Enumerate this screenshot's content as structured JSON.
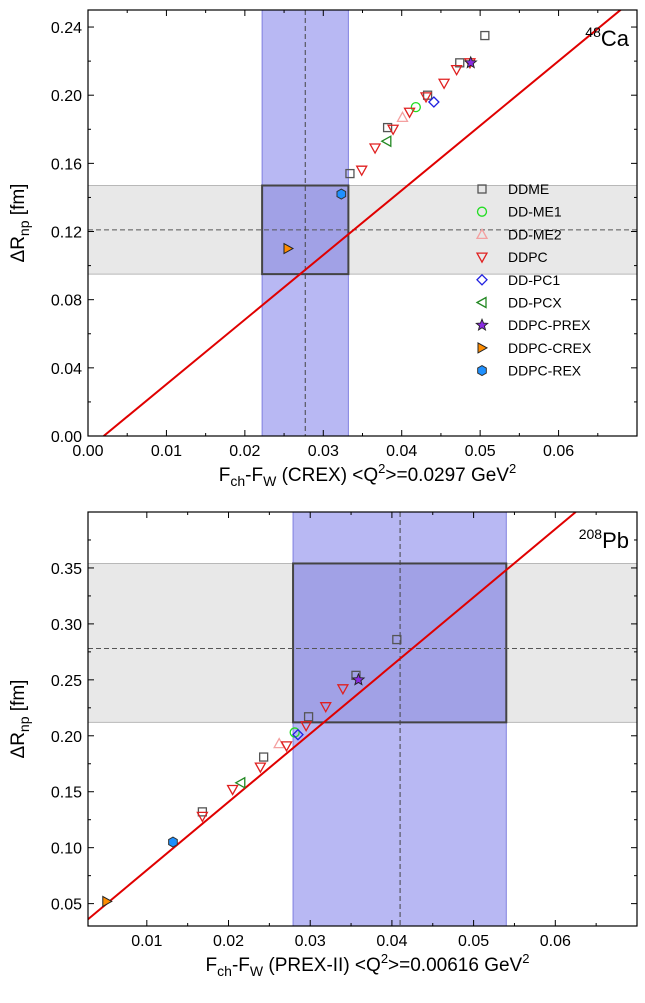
{
  "chart_data": [
    {
      "type": "scatter",
      "nucleus": "Ca",
      "mass_number": "48",
      "xlabel": {
        "base": "F",
        "sub1": "ch",
        "mid": "-F",
        "sub2": "W",
        "rest": " (CREX) <Q",
        "sup": "2",
        "rest2": ">=0.0297 GeV",
        "sup2": "2"
      },
      "ylabel": {
        "base": "ΔR",
        "sub": "np",
        "rest": " [fm]"
      },
      "xlim": [
        0.0,
        0.07
      ],
      "ylim": [
        0.0,
        0.25
      ],
      "xticks": [
        0.0,
        0.01,
        0.02,
        0.03,
        0.04,
        0.05,
        0.06
      ],
      "xtick_labels": [
        "0.00",
        "0.01",
        "0.02",
        "0.03",
        "0.04",
        "0.05",
        "0.06"
      ],
      "yticks": [
        0.0,
        0.04,
        0.08,
        0.12,
        0.16,
        0.2,
        0.24
      ],
      "ytick_labels": [
        "0.00",
        "0.04",
        "0.08",
        "0.12",
        "0.16",
        "0.20",
        "0.24"
      ],
      "exp_x": {
        "center": 0.0277,
        "low": 0.0222,
        "high": 0.0332
      },
      "exp_y": {
        "center": 0.121,
        "low": 0.095,
        "high": 0.147
      },
      "fit_line": {
        "x": [
          0.002,
          0.07
        ],
        "y": [
          0.0,
          0.258
        ]
      },
      "series": [
        {
          "name": "DDME",
          "marker": "square",
          "color": "#555555",
          "points": [
            [
              0.0334,
              0.154
            ],
            [
              0.0382,
              0.181
            ],
            [
              0.0433,
              0.2
            ],
            [
              0.0474,
              0.219
            ],
            [
              0.0506,
              0.235
            ]
          ]
        },
        {
          "name": "DD-ME1",
          "marker": "circle",
          "color": "#22dd22",
          "points": [
            [
              0.0418,
              0.193
            ]
          ]
        },
        {
          "name": "DD-ME2",
          "marker": "triangle-up",
          "color": "#f4a0a0",
          "points": [
            [
              0.0401,
              0.187
            ]
          ]
        },
        {
          "name": "DDPC",
          "marker": "triangle-down",
          "color": "#e02020",
          "points": [
            [
              0.0349,
              0.156
            ],
            [
              0.0366,
              0.169
            ],
            [
              0.0389,
              0.18
            ],
            [
              0.041,
              0.19
            ],
            [
              0.0431,
              0.199
            ],
            [
              0.0454,
              0.207
            ],
            [
              0.047,
              0.215
            ],
            [
              0.0487,
              0.219
            ]
          ]
        },
        {
          "name": "DD-PC1",
          "marker": "diamond",
          "color": "#2020e0",
          "points": [
            [
              0.0441,
              0.196
            ]
          ]
        },
        {
          "name": "DD-PCX",
          "marker": "triangle-left",
          "color": "#228822",
          "points": [
            [
              0.0381,
              0.173
            ]
          ]
        },
        {
          "name": "DDPC-PREX",
          "marker": "star",
          "color": "#8a2be2",
          "points": [
            [
              0.0488,
              0.219
            ]
          ]
        },
        {
          "name": "DDPC-CREX",
          "marker": "triangle-right",
          "color": "#ff8c00",
          "points": [
            [
              0.0255,
              0.11
            ]
          ]
        },
        {
          "name": "DDPC-REX",
          "marker": "hexagon",
          "color": "#1e90ff",
          "points": [
            [
              0.0323,
              0.142
            ]
          ]
        }
      ],
      "legend_position": "right"
    },
    {
      "type": "scatter",
      "nucleus": "Pb",
      "mass_number": "208",
      "xlabel": {
        "base": "F",
        "sub1": "ch",
        "mid": "-F",
        "sub2": "W",
        "rest": " (PREX-II) <Q",
        "sup": "2",
        "rest2": ">=0.00616 GeV",
        "sup2": "2"
      },
      "ylabel": {
        "base": "ΔR",
        "sub": "np",
        "rest": " [fm]"
      },
      "xlim": [
        0.0028,
        0.07
      ],
      "ylim": [
        0.03,
        0.4
      ],
      "xticks": [
        0.01,
        0.02,
        0.03,
        0.04,
        0.05,
        0.06
      ],
      "xtick_labels": [
        "0.01",
        "0.02",
        "0.03",
        "0.04",
        "0.05",
        "0.06"
      ],
      "yticks": [
        0.05,
        0.1,
        0.15,
        0.2,
        0.25,
        0.3,
        0.35
      ],
      "ytick_labels": [
        "0.05",
        "0.10",
        "0.15",
        "0.20",
        "0.25",
        "0.30",
        "0.35"
      ],
      "exp_x": {
        "center": 0.041,
        "low": 0.0279,
        "high": 0.054
      },
      "exp_y": {
        "center": 0.278,
        "low": 0.212,
        "high": 0.354
      },
      "fit_line": {
        "x": [
          0.0028,
          0.0625
        ],
        "y": [
          0.036,
          0.4
        ]
      },
      "series": [
        {
          "name": "DDME",
          "marker": "square",
          "color": "#555555",
          "points": [
            [
              0.0168,
              0.132
            ],
            [
              0.0243,
              0.181
            ],
            [
              0.0298,
              0.217
            ],
            [
              0.0356,
              0.254
            ],
            [
              0.0406,
              0.286
            ]
          ]
        },
        {
          "name": "DD-ME1",
          "marker": "circle",
          "color": "#22dd22",
          "points": [
            [
              0.0281,
              0.203
            ]
          ]
        },
        {
          "name": "DD-ME2",
          "marker": "triangle-up",
          "color": "#f4a0a0",
          "points": [
            [
              0.0262,
              0.193
            ]
          ]
        },
        {
          "name": "DDPC",
          "marker": "triangle-down",
          "color": "#e02020",
          "points": [
            [
              0.0168,
              0.128
            ],
            [
              0.0205,
              0.152
            ],
            [
              0.0239,
              0.172
            ],
            [
              0.0271,
              0.191
            ],
            [
              0.0295,
              0.209
            ],
            [
              0.0319,
              0.226
            ],
            [
              0.034,
              0.242
            ]
          ]
        },
        {
          "name": "DD-PC1",
          "marker": "diamond",
          "color": "#2020e0",
          "points": [
            [
              0.0285,
              0.201
            ]
          ]
        },
        {
          "name": "DD-PCX",
          "marker": "triangle-left",
          "color": "#228822",
          "points": [
            [
              0.0215,
              0.158
            ]
          ]
        },
        {
          "name": "DDPC-PREX",
          "marker": "star",
          "color": "#8a2be2",
          "points": [
            [
              0.0359,
              0.25
            ]
          ]
        },
        {
          "name": "DDPC-CREX",
          "marker": "triangle-right",
          "color": "#ff8c00",
          "points": [
            [
              0.0051,
              0.052
            ]
          ]
        },
        {
          "name": "DDPC-REX",
          "marker": "hexagon",
          "color": "#1e90ff",
          "points": [
            [
              0.0132,
              0.105
            ]
          ]
        }
      ]
    }
  ],
  "colors": {
    "fit_line": "#e00000",
    "band_x": "#b0b0f2",
    "band_x_edge": "#7f7fe0",
    "band_y": "#e8e8e8",
    "band_y_edge": "#b8b8b8",
    "box_fill": "#9e9ee4",
    "box_edge": "#444444"
  }
}
